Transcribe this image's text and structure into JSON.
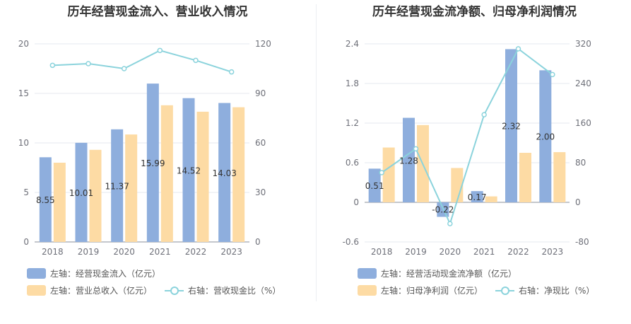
{
  "chart_data": [
    {
      "type": "bar",
      "title": "历年经营现金流入、营业收入情况",
      "categories": [
        "2018",
        "2019",
        "2020",
        "2021",
        "2022",
        "2023"
      ],
      "y_left": {
        "min": 0,
        "max": 20,
        "ticks": [
          "0",
          "5",
          "10",
          "15",
          "20"
        ]
      },
      "y_right": {
        "min": 0,
        "max": 120,
        "ticks": [
          "0",
          "30",
          "60",
          "90",
          "120"
        ]
      },
      "series": [
        {
          "name": "左轴：经营现金流入（亿元）",
          "type": "bar",
          "axis": "left",
          "color": "#8eaedd",
          "values": [
            8.55,
            10.01,
            11.37,
            15.99,
            14.52,
            14.03
          ],
          "labels": [
            "8.55",
            "10.01",
            "11.37",
            "15.99",
            "14.52",
            "14.03"
          ]
        },
        {
          "name": "左轴：营业总收入（亿元）",
          "type": "bar",
          "axis": "left",
          "color": "#fddba4",
          "values": [
            8.0,
            9.3,
            10.85,
            13.8,
            13.15,
            13.6
          ]
        },
        {
          "name": "右轴：营收现金比（%）",
          "type": "line",
          "axis": "right",
          "color": "#8bd3dc",
          "values": [
            107,
            108,
            105,
            116,
            110,
            103
          ]
        }
      ]
    },
    {
      "type": "bar",
      "title": "历年经营现金流净额、归母净利润情况",
      "categories": [
        "2018",
        "2019",
        "2020",
        "2021",
        "2022",
        "2023"
      ],
      "y_left": {
        "min": -0.6,
        "max": 2.4,
        "ticks": [
          "-0.6",
          "0",
          "0.6",
          "1.2",
          "1.8",
          "2.4"
        ]
      },
      "y_right": {
        "min": -80,
        "max": 320,
        "ticks": [
          "-80",
          "0",
          "80",
          "160",
          "240",
          "320"
        ]
      },
      "series": [
        {
          "name": "左轴：经营活动现金流净额（亿元）",
          "type": "bar",
          "axis": "left",
          "color": "#8eaedd",
          "values": [
            0.51,
            1.28,
            -0.22,
            0.17,
            2.32,
            2.0
          ],
          "labels": [
            "0.51",
            "1.28",
            "-0.22",
            "0.17",
            "2.32",
            "2.00"
          ]
        },
        {
          "name": "左轴：归母净利润（亿元）",
          "type": "bar",
          "axis": "left",
          "color": "#fddba4",
          "values": [
            0.83,
            1.17,
            0.52,
            0.09,
            0.75,
            0.76
          ]
        },
        {
          "name": "右轴：净现比（%）",
          "type": "line",
          "axis": "right",
          "color": "#8bd3dc",
          "values": [
            60,
            108,
            -43,
            177,
            310,
            258
          ]
        }
      ]
    }
  ]
}
